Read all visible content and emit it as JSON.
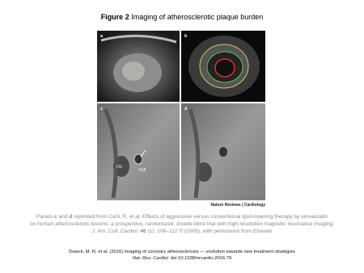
{
  "title": [
    "Figure 2",
    " Imaging of atherosclerotic plaque burden"
  ],
  "figure": {
    "panels": [
      "a",
      "b",
      "c",
      "d"
    ],
    "labels": [
      "IJV",
      "ICA"
    ],
    "credit": "Nature Reviews | Cardiology"
  },
  "caption": [
    [
      "Panels ",
      "c",
      " and ",
      "d",
      " reprinted from Corti, R. ",
      "et al.",
      " Effects of aggressive versus conventional lipid-lowering therapy by simvastatin"
    ],
    [
      "on human atherosclerotic lesions: a prospective, randomized, double-blind trial with high-resolution magnetic resonance imaging."
    ],
    [
      "J. Am. Coll. Cardiol.",
      " ",
      "46",
      " (1), 106–112 © (2005), with permission from Elsevier"
    ]
  ],
  "citation": [
    [
      "Dweck, M. R. et al. (2016) Imaging of coronary atherosclerosis — evolution towards new treatment strategies"
    ],
    [
      "Nat. Rev. Cardiol.",
      " doi:10.1038/nrcardio.2016.79"
    ]
  ]
}
